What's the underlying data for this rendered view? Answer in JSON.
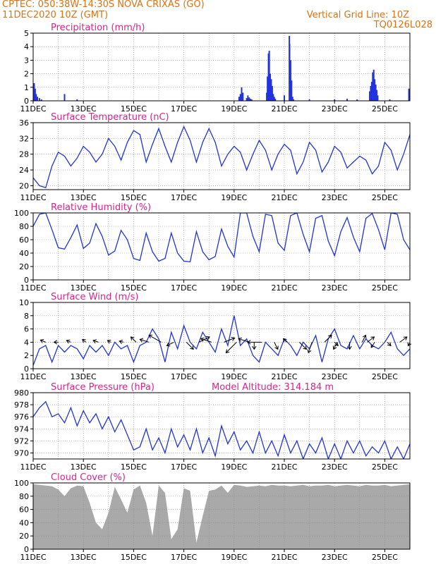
{
  "header": {
    "line1": "CPTEC:   050:38W-14:30S   NOVA CRIXAS (GO)",
    "line2": "11DEC2020 10Z (GMT)",
    "grid_note": "Vertical Grid Line: 10Z",
    "code": "TQ0126L028"
  },
  "colors": {
    "header": "#e07010",
    "title": "#e0208c",
    "line": "#2233dd",
    "bar": "#2233dd",
    "cloud": "#a9a9a9",
    "grid": "#888888"
  },
  "chart_data": [
    {
      "id": "precip",
      "type": "bar",
      "title": "Precipitation (mm/h)",
      "ylim": [
        0,
        5
      ],
      "yticks": [
        0,
        1,
        2,
        3,
        4,
        5
      ],
      "xlim_days": [
        0,
        15
      ],
      "xticks": [
        "11DEC",
        "13DEC",
        "15DEC",
        "17DEC",
        "19DEC",
        "21DEC",
        "23DEC",
        "25DEC"
      ],
      "x_day": [
        0.04,
        0.08,
        0.12,
        0.17,
        0.25,
        0.33,
        1.25,
        1.75,
        8.2,
        8.25,
        8.3,
        8.35,
        8.5,
        8.55,
        8.6,
        8.65,
        8.7,
        9.3,
        9.33,
        9.37,
        9.4,
        9.44,
        9.48,
        9.52,
        9.56,
        9.6,
        9.64,
        10.0,
        10.2,
        10.21,
        10.25,
        10.29,
        10.33,
        10.37,
        11.0,
        12.0,
        12.5,
        12.9,
        13.4,
        13.44,
        13.48,
        13.52,
        13.56,
        13.6,
        13.64,
        13.68,
        13.72,
        14.2,
        14.96
      ],
      "values": [
        1.3,
        0.9,
        0.5,
        0.3,
        0.2,
        0.1,
        0.5,
        0.1,
        0.3,
        0.5,
        1.0,
        0.6,
        0.2,
        0.4,
        0.25,
        0.15,
        0.1,
        0.6,
        1.8,
        3.5,
        3.7,
        2.0,
        1.6,
        1.1,
        0.5,
        0.3,
        0.15,
        0.4,
        4.8,
        4.2,
        3.0,
        1.5,
        0.3,
        0.1,
        0.1,
        0.1,
        0.15,
        0.1,
        0.7,
        1.1,
        1.4,
        2.1,
        2.3,
        1.6,
        1.2,
        0.8,
        0.4,
        0.1,
        0.9
      ]
    },
    {
      "id": "temp",
      "type": "line",
      "title": "Surface Temperature (nC)",
      "ylim": [
        19,
        36
      ],
      "yticks": [
        20,
        24,
        28,
        32,
        36
      ],
      "xlim_days": [
        0,
        15
      ],
      "xticks": [
        "11DEC",
        "13DEC",
        "15DEC",
        "17DEC",
        "19DEC",
        "21DEC",
        "23DEC",
        "25DEC"
      ],
      "x_day": [
        0,
        0.25,
        0.5,
        0.75,
        1,
        1.25,
        1.5,
        1.75,
        2,
        2.25,
        2.5,
        2.75,
        3,
        3.25,
        3.5,
        3.75,
        4,
        4.25,
        4.5,
        4.75,
        5,
        5.25,
        5.5,
        5.75,
        6,
        6.25,
        6.5,
        6.75,
        7,
        7.25,
        7.5,
        7.75,
        8,
        8.25,
        8.5,
        8.75,
        9,
        9.25,
        9.5,
        9.75,
        10,
        10.25,
        10.5,
        10.75,
        11,
        11.25,
        11.5,
        11.75,
        12,
        12.25,
        12.5,
        12.75,
        13,
        13.25,
        13.5,
        13.75,
        14,
        14.25,
        14.5,
        14.75,
        15
      ],
      "values": [
        22,
        20,
        19.5,
        25,
        28.5,
        27.5,
        25,
        27,
        30,
        28.5,
        26,
        28,
        32,
        30,
        26.5,
        31,
        34,
        33,
        26,
        30.5,
        34.5,
        30,
        26,
        31,
        35,
        31.5,
        26,
        31,
        34.5,
        31,
        25,
        28,
        30,
        28.5,
        24,
        28,
        31.5,
        29,
        24,
        28,
        30.5,
        29,
        23,
        26,
        31,
        29,
        23.5,
        26,
        30,
        28.5,
        24.5,
        26,
        27.5,
        26.5,
        23,
        25,
        31,
        29,
        24,
        28,
        33
      ]
    },
    {
      "id": "rh",
      "type": "line",
      "title": "Relative Humidity (%)",
      "ylim": [
        0,
        100
      ],
      "yticks": [
        0,
        20,
        40,
        60,
        80,
        100
      ],
      "xlim_days": [
        0,
        15
      ],
      "xticks": [
        "11DEC",
        "13DEC",
        "15DEC",
        "17DEC",
        "19DEC",
        "21DEC",
        "23DEC",
        "25DEC"
      ],
      "x_day": [
        0,
        0.25,
        0.5,
        0.75,
        1,
        1.25,
        1.5,
        1.75,
        2,
        2.25,
        2.5,
        2.75,
        3,
        3.25,
        3.5,
        3.75,
        4,
        4.25,
        4.5,
        4.75,
        5,
        5.25,
        5.5,
        5.75,
        6,
        6.25,
        6.5,
        6.75,
        7,
        7.25,
        7.5,
        7.75,
        8,
        8.25,
        8.5,
        8.75,
        9,
        9.25,
        9.5,
        9.75,
        10,
        10.25,
        10.5,
        10.75,
        11,
        11.25,
        11.5,
        11.75,
        12,
        12.25,
        12.5,
        12.75,
        13,
        13.25,
        13.5,
        13.75,
        14,
        14.25,
        14.5,
        14.75,
        15
      ],
      "values": [
        80,
        98,
        100,
        75,
        48,
        46,
        63,
        82,
        47,
        55,
        84,
        65,
        37,
        43,
        74,
        60,
        32,
        29,
        70,
        42,
        28,
        32,
        70,
        40,
        28,
        27,
        72,
        42,
        30,
        35,
        76,
        50,
        34,
        100,
        100,
        65,
        42,
        98,
        96,
        55,
        44,
        96,
        100,
        68,
        42,
        92,
        96,
        58,
        36,
        72,
        93,
        64,
        42,
        92,
        99,
        75,
        45,
        100,
        98,
        60,
        45
      ]
    },
    {
      "id": "wind",
      "type": "line",
      "title": "Surface Wind (m/s)",
      "ylim": [
        0,
        10
      ],
      "yticks": [
        0,
        2,
        4,
        6,
        8,
        10
      ],
      "xlim_days": [
        0,
        15
      ],
      "xticks": [
        "11DEC",
        "13DEC",
        "15DEC",
        "17DEC",
        "19DEC",
        "21DEC",
        "23DEC",
        "25DEC"
      ],
      "x_day": [
        0,
        0.25,
        0.5,
        0.75,
        1,
        1.25,
        1.5,
        1.75,
        2,
        2.25,
        2.5,
        2.75,
        3,
        3.25,
        3.5,
        3.75,
        4,
        4.25,
        4.5,
        4.75,
        5,
        5.25,
        5.5,
        5.75,
        6,
        6.25,
        6.5,
        6.75,
        7,
        7.25,
        7.5,
        7.75,
        8,
        8.25,
        8.5,
        8.75,
        9,
        9.25,
        9.5,
        9.75,
        10,
        10.25,
        10.5,
        10.75,
        11,
        11.25,
        11.5,
        11.75,
        12,
        12.25,
        12.5,
        12.75,
        13,
        13.25,
        13.5,
        13.75,
        14,
        14.25,
        14.5,
        14.75,
        15
      ],
      "values": [
        0.5,
        3,
        3.5,
        1,
        3.5,
        2.5,
        3.5,
        3,
        1.5,
        3.5,
        2.5,
        3.5,
        2,
        4,
        3,
        3.5,
        1,
        3.5,
        4,
        6,
        4.5,
        1,
        5.5,
        3,
        6.5,
        4,
        3,
        5.5,
        4,
        2.5,
        6,
        3.5,
        8,
        3.5,
        4.5,
        2,
        1,
        4,
        3,
        2,
        4.5,
        3.5,
        2,
        4,
        3,
        5,
        1,
        4.5,
        6,
        3.5,
        3,
        5,
        3,
        4.5,
        3.5,
        3,
        4,
        5.5,
        3,
        2,
        3
      ],
      "barbs_u": [
        -1.5,
        -1.2,
        -1.2,
        -1,
        -1.5,
        -1,
        -1.2,
        -1.5,
        -2.5,
        -3.5,
        -2,
        2,
        3,
        -3,
        3,
        -3,
        -3,
        -4,
        1,
        -1,
        2,
        -1,
        2,
        -1,
        0,
        1,
        -1,
        1,
        2,
        -0.5,
        0,
        1,
        2
      ],
      "barbs_v": [
        0.6,
        0,
        0.5,
        0.8,
        0.5,
        0.5,
        0.3,
        1.5,
        0.8,
        2,
        -1,
        -2,
        1.5,
        1,
        1.2,
        -3,
        1,
        0,
        -2,
        1,
        -2,
        -3,
        2,
        -2,
        -2,
        2,
        -1.5,
        -1,
        1.5,
        -1,
        -2,
        -1,
        1.5
      ],
      "barbs_day": [
        0.5,
        1,
        1.5,
        2.1,
        2.6,
        3.1,
        3.6,
        4.1,
        4.6,
        5.1,
        5.6,
        6.1,
        6.6,
        7.1,
        7.6,
        8.1,
        8.6,
        9.1,
        9.6,
        10.1,
        10.6,
        11.1,
        11.6,
        12.1,
        12.6,
        13.1,
        13.6,
        14.1,
        14.6,
        15,
        8.8,
        12,
        13.3
      ]
    },
    {
      "id": "pressure",
      "type": "line",
      "title": "Surface Pressure (hPa)",
      "note": "Model Altitude: 314.184 m",
      "ylim": [
        969,
        980
      ],
      "yticks": [
        970,
        972,
        974,
        976,
        978,
        980
      ],
      "xlim_days": [
        0,
        15
      ],
      "xticks": [
        "11DEC",
        "13DEC",
        "15DEC",
        "17DEC",
        "19DEC",
        "21DEC",
        "23DEC",
        "25DEC"
      ],
      "x_day": [
        0,
        0.25,
        0.5,
        0.75,
        1,
        1.25,
        1.5,
        1.75,
        2,
        2.25,
        2.5,
        2.75,
        3,
        3.25,
        3.5,
        3.75,
        4,
        4.25,
        4.5,
        4.75,
        5,
        5.25,
        5.5,
        5.75,
        6,
        6.25,
        6.5,
        6.75,
        7,
        7.25,
        7.5,
        7.75,
        8,
        8.25,
        8.5,
        8.75,
        9,
        9.25,
        9.5,
        9.75,
        10,
        10.25,
        10.5,
        10.75,
        11,
        11.25,
        11.5,
        11.75,
        12,
        12.25,
        12.5,
        12.75,
        13,
        13.25,
        13.5,
        13.75,
        14,
        14.25,
        14.5,
        14.75,
        15
      ],
      "values": [
        976,
        977.5,
        978.5,
        976,
        976.5,
        975,
        977.5,
        974.5,
        977,
        975,
        976.5,
        974,
        976,
        973.5,
        975.5,
        973,
        970.5,
        971,
        974,
        970.5,
        972.5,
        970,
        974,
        971,
        973,
        970.5,
        974,
        970,
        972.5,
        969.5,
        974.5,
        971.5,
        973.5,
        970.5,
        972,
        970,
        973.5,
        970,
        972,
        969.5,
        973,
        970,
        972,
        969,
        971.5,
        970,
        972.5,
        969,
        971.5,
        969,
        972,
        970,
        972,
        969.5,
        971,
        970,
        972,
        969,
        971,
        969,
        971.5
      ]
    },
    {
      "id": "cloud",
      "type": "area",
      "title": "Cloud Cover (%)",
      "ylim": [
        0,
        100
      ],
      "yticks": [
        0,
        20,
        40,
        60,
        80,
        100
      ],
      "xlim_days": [
        0,
        15
      ],
      "xticks": [
        "11DEC",
        "13DEC",
        "15DEC",
        "17DEC",
        "19DEC",
        "21DEC",
        "23DEC",
        "25DEC"
      ],
      "x_day": [
        0,
        0.25,
        0.5,
        0.75,
        1,
        1.25,
        1.5,
        1.75,
        2,
        2.25,
        2.5,
        2.75,
        3,
        3.25,
        3.5,
        3.75,
        4,
        4.25,
        4.5,
        4.75,
        5,
        5.25,
        5.5,
        5.75,
        6,
        6.25,
        6.5,
        6.75,
        7,
        7.25,
        7.5,
        7.75,
        8,
        8.25,
        8.5,
        8.75,
        9,
        9.25,
        9.5,
        9.75,
        10,
        10.25,
        10.5,
        10.75,
        11,
        11.25,
        11.5,
        11.75,
        12,
        12.25,
        12.5,
        12.75,
        13,
        13.25,
        13.5,
        13.75,
        14,
        14.25,
        14.5,
        14.75,
        15
      ],
      "values": [
        98,
        97,
        96,
        95,
        90,
        80,
        92,
        96,
        95,
        70,
        40,
        30,
        55,
        94,
        75,
        55,
        90,
        96,
        70,
        20,
        96,
        85,
        15,
        30,
        92,
        88,
        10,
        50,
        88,
        90,
        96,
        85,
        97,
        96,
        94,
        95,
        96,
        95,
        97,
        96,
        96,
        95,
        96,
        97,
        95,
        96,
        96,
        97,
        95,
        96,
        97,
        96,
        95,
        97,
        96,
        96,
        97,
        95,
        96,
        97,
        98
      ]
    }
  ]
}
